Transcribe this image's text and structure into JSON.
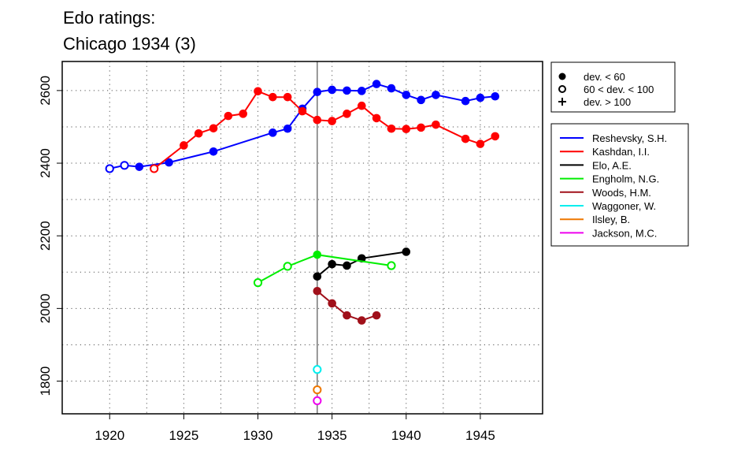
{
  "chart_data": {
    "type": "line",
    "title_lines": [
      "Edo ratings:",
      "Chicago 1934 (3)"
    ],
    "xlabel": "",
    "ylabel": "",
    "xlim": [
      1916.8,
      1949.2
    ],
    "ylim": [
      1710,
      2680
    ],
    "x_ticks": [
      1920,
      1925,
      1930,
      1935,
      1940,
      1945
    ],
    "y_ticks": [
      1800,
      2000,
      2200,
      2400,
      2600
    ],
    "grid": "dotted",
    "event_year": 1934,
    "marker_legend": [
      {
        "symbol": "filled-circle",
        "label": "dev. < 60"
      },
      {
        "symbol": "open-circle",
        "label": "60 < dev. < 100"
      },
      {
        "symbol": "plus",
        "label": "dev. > 100"
      }
    ],
    "series": [
      {
        "name": "Reshevsky, S.H.",
        "color": "#0000ff",
        "points": [
          {
            "x": 1920,
            "y": 2385,
            "m": "o"
          },
          {
            "x": 1921,
            "y": 2394,
            "m": "o"
          },
          {
            "x": 1922,
            "y": 2390,
            "m": "f"
          },
          {
            "x": 1924,
            "y": 2402,
            "m": "f"
          },
          {
            "x": 1927,
            "y": 2432,
            "m": "f"
          },
          {
            "x": 1931,
            "y": 2484,
            "m": "f"
          },
          {
            "x": 1932,
            "y": 2495,
            "m": "f"
          },
          {
            "x": 1933,
            "y": 2550,
            "m": "f"
          },
          {
            "x": 1934,
            "y": 2596,
            "m": "f"
          },
          {
            "x": 1935,
            "y": 2602,
            "m": "f"
          },
          {
            "x": 1936,
            "y": 2600,
            "m": "f"
          },
          {
            "x": 1937,
            "y": 2599,
            "m": "f"
          },
          {
            "x": 1938,
            "y": 2618,
            "m": "f"
          },
          {
            "x": 1939,
            "y": 2606,
            "m": "f"
          },
          {
            "x": 1940,
            "y": 2588,
            "m": "f"
          },
          {
            "x": 1941,
            "y": 2574,
            "m": "f"
          },
          {
            "x": 1942,
            "y": 2588,
            "m": "f"
          },
          {
            "x": 1944,
            "y": 2571,
            "m": "f"
          },
          {
            "x": 1945,
            "y": 2580,
            "m": "f"
          },
          {
            "x": 1946,
            "y": 2584,
            "m": "f"
          }
        ]
      },
      {
        "name": "Kashdan, I.I.",
        "color": "#ff0000",
        "points": [
          {
            "x": 1923,
            "y": 2385,
            "m": "o"
          },
          {
            "x": 1925,
            "y": 2449,
            "m": "f"
          },
          {
            "x": 1926,
            "y": 2482,
            "m": "f"
          },
          {
            "x": 1927,
            "y": 2496,
            "m": "f"
          },
          {
            "x": 1928,
            "y": 2530,
            "m": "f"
          },
          {
            "x": 1929,
            "y": 2536,
            "m": "f"
          },
          {
            "x": 1930,
            "y": 2598,
            "m": "f"
          },
          {
            "x": 1931,
            "y": 2582,
            "m": "f"
          },
          {
            "x": 1932,
            "y": 2582,
            "m": "f"
          },
          {
            "x": 1933,
            "y": 2543,
            "m": "f"
          },
          {
            "x": 1934,
            "y": 2519,
            "m": "f"
          },
          {
            "x": 1935,
            "y": 2516,
            "m": "f"
          },
          {
            "x": 1936,
            "y": 2536,
            "m": "f"
          },
          {
            "x": 1937,
            "y": 2558,
            "m": "f"
          },
          {
            "x": 1938,
            "y": 2524,
            "m": "f"
          },
          {
            "x": 1939,
            "y": 2495,
            "m": "f"
          },
          {
            "x": 1940,
            "y": 2494,
            "m": "f"
          },
          {
            "x": 1941,
            "y": 2498,
            "m": "f"
          },
          {
            "x": 1942,
            "y": 2506,
            "m": "f"
          },
          {
            "x": 1944,
            "y": 2467,
            "m": "f"
          },
          {
            "x": 1945,
            "y": 2453,
            "m": "f"
          },
          {
            "x": 1946,
            "y": 2474,
            "m": "f"
          }
        ]
      },
      {
        "name": "Elo, A.E.",
        "color": "#000000",
        "points": [
          {
            "x": 1934,
            "y": 2088,
            "m": "f"
          },
          {
            "x": 1935,
            "y": 2122,
            "m": "f"
          },
          {
            "x": 1936,
            "y": 2118,
            "m": "f"
          },
          {
            "x": 1937,
            "y": 2138,
            "m": "f"
          },
          {
            "x": 1940,
            "y": 2156,
            "m": "f"
          }
        ]
      },
      {
        "name": "Engholm, N.G.",
        "color": "#00ee00",
        "points": [
          {
            "x": 1930,
            "y": 2071,
            "m": "o"
          },
          {
            "x": 1932,
            "y": 2116,
            "m": "o"
          },
          {
            "x": 1934,
            "y": 2148,
            "m": "f"
          },
          {
            "x": 1939,
            "y": 2118,
            "m": "o"
          }
        ]
      },
      {
        "name": "Woods, H.M.",
        "color": "#a0101a",
        "points": [
          {
            "x": 1934,
            "y": 2048,
            "m": "f"
          },
          {
            "x": 1935,
            "y": 2014,
            "m": "f"
          },
          {
            "x": 1936,
            "y": 1981,
            "m": "f"
          },
          {
            "x": 1937,
            "y": 1967,
            "m": "f"
          },
          {
            "x": 1938,
            "y": 1981,
            "m": "f"
          }
        ]
      },
      {
        "name": "Waggoner, W.",
        "color": "#00eeee",
        "points": [
          {
            "x": 1934,
            "y": 1832,
            "m": "o"
          }
        ]
      },
      {
        "name": "Ilsley, B.",
        "color": "#ee7700",
        "points": [
          {
            "x": 1934,
            "y": 1776,
            "m": "o"
          }
        ]
      },
      {
        "name": "Jackson, M.C.",
        "color": "#ee00ee",
        "points": [
          {
            "x": 1934,
            "y": 1746,
            "m": "o"
          }
        ]
      }
    ]
  }
}
